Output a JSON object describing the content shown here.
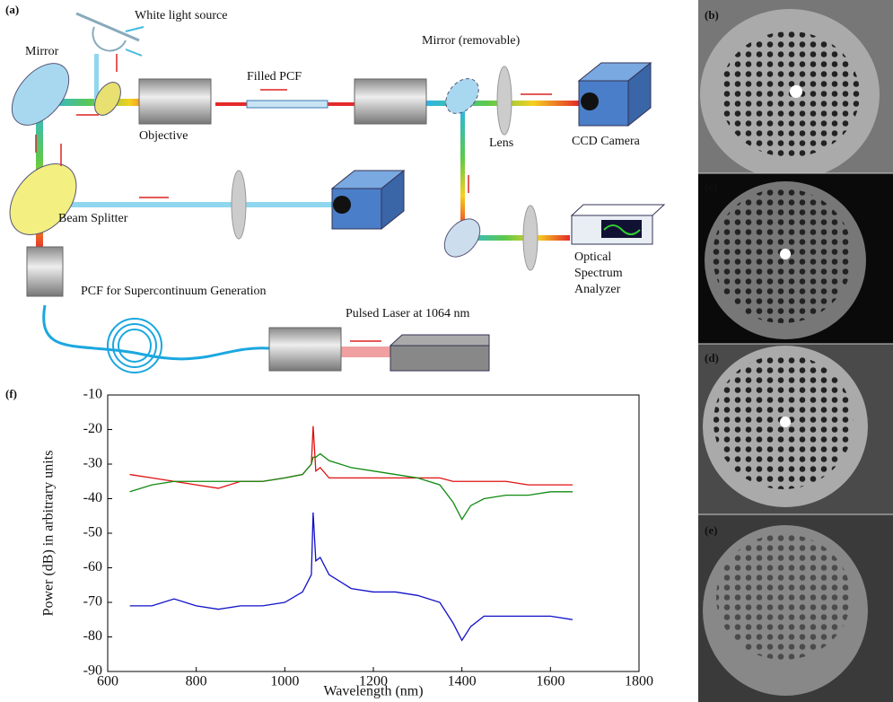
{
  "figure": {
    "panel_labels": [
      "(a)",
      "(b)",
      "(c)",
      "(d)",
      "(e)",
      "(f)"
    ]
  },
  "diagram": {
    "labels": [
      "White light source",
      "Mirror",
      "Objective",
      "Filled PCF",
      "Mirror (removable)",
      "Lens",
      "CCD Camera",
      "Beam Splitter",
      "Optical",
      "Spectrum",
      "Analyzer",
      "PCF for Supercontinuum Generation",
      "Pulsed Laser at 1064 nm"
    ]
  },
  "chart_data": {
    "type": "line",
    "x_label": "Wavelength (nm)",
    "y_label": "Power (dB) in arbitrary units",
    "x": [
      650,
      700,
      750,
      800,
      850,
      900,
      950,
      1000,
      1040,
      1060,
      1064,
      1070,
      1080,
      1100,
      1150,
      1200,
      1250,
      1300,
      1350,
      1380,
      1400,
      1420,
      1450,
      1500,
      1550,
      1600,
      1650
    ],
    "series": [
      {
        "color": "#e01010",
        "values": [
          -33,
          -34,
          -35,
          -36,
          -37,
          -35,
          -35,
          -34,
          -33,
          -30,
          -19,
          -32,
          -31,
          -34,
          -34,
          -34,
          -34,
          -34,
          -34,
          -35,
          -35,
          -35,
          -35,
          -35,
          -36,
          -36,
          -36
        ]
      },
      {
        "color": "#108a10",
        "values": [
          -38,
          -36,
          -35,
          -35,
          -35,
          -35,
          -35,
          -34,
          -33,
          -30,
          -28,
          -28,
          -27,
          -29,
          -31,
          -32,
          -33,
          -34,
          -36,
          -41,
          -46,
          -42,
          -40,
          -39,
          -39,
          -38,
          -38
        ]
      },
      {
        "color": "#1010c8",
        "values": [
          -71,
          -71,
          -69,
          -71,
          -72,
          -71,
          -71,
          -70,
          -67,
          -62,
          -44,
          -58,
          -57,
          -62,
          -66,
          -67,
          -67,
          -68,
          -70,
          -76,
          -81,
          -77,
          -74,
          -74,
          -74,
          -74,
          -75
        ]
      }
    ],
    "xlim": [
      600,
      1800
    ],
    "xticks": [
      600,
      800,
      1000,
      1200,
      1400,
      1600,
      1800
    ],
    "ylim": [
      -90,
      -10
    ],
    "yticks": [
      -90,
      -80,
      -70,
      -60,
      -50,
      -40,
      -30,
      -20,
      -10
    ]
  }
}
